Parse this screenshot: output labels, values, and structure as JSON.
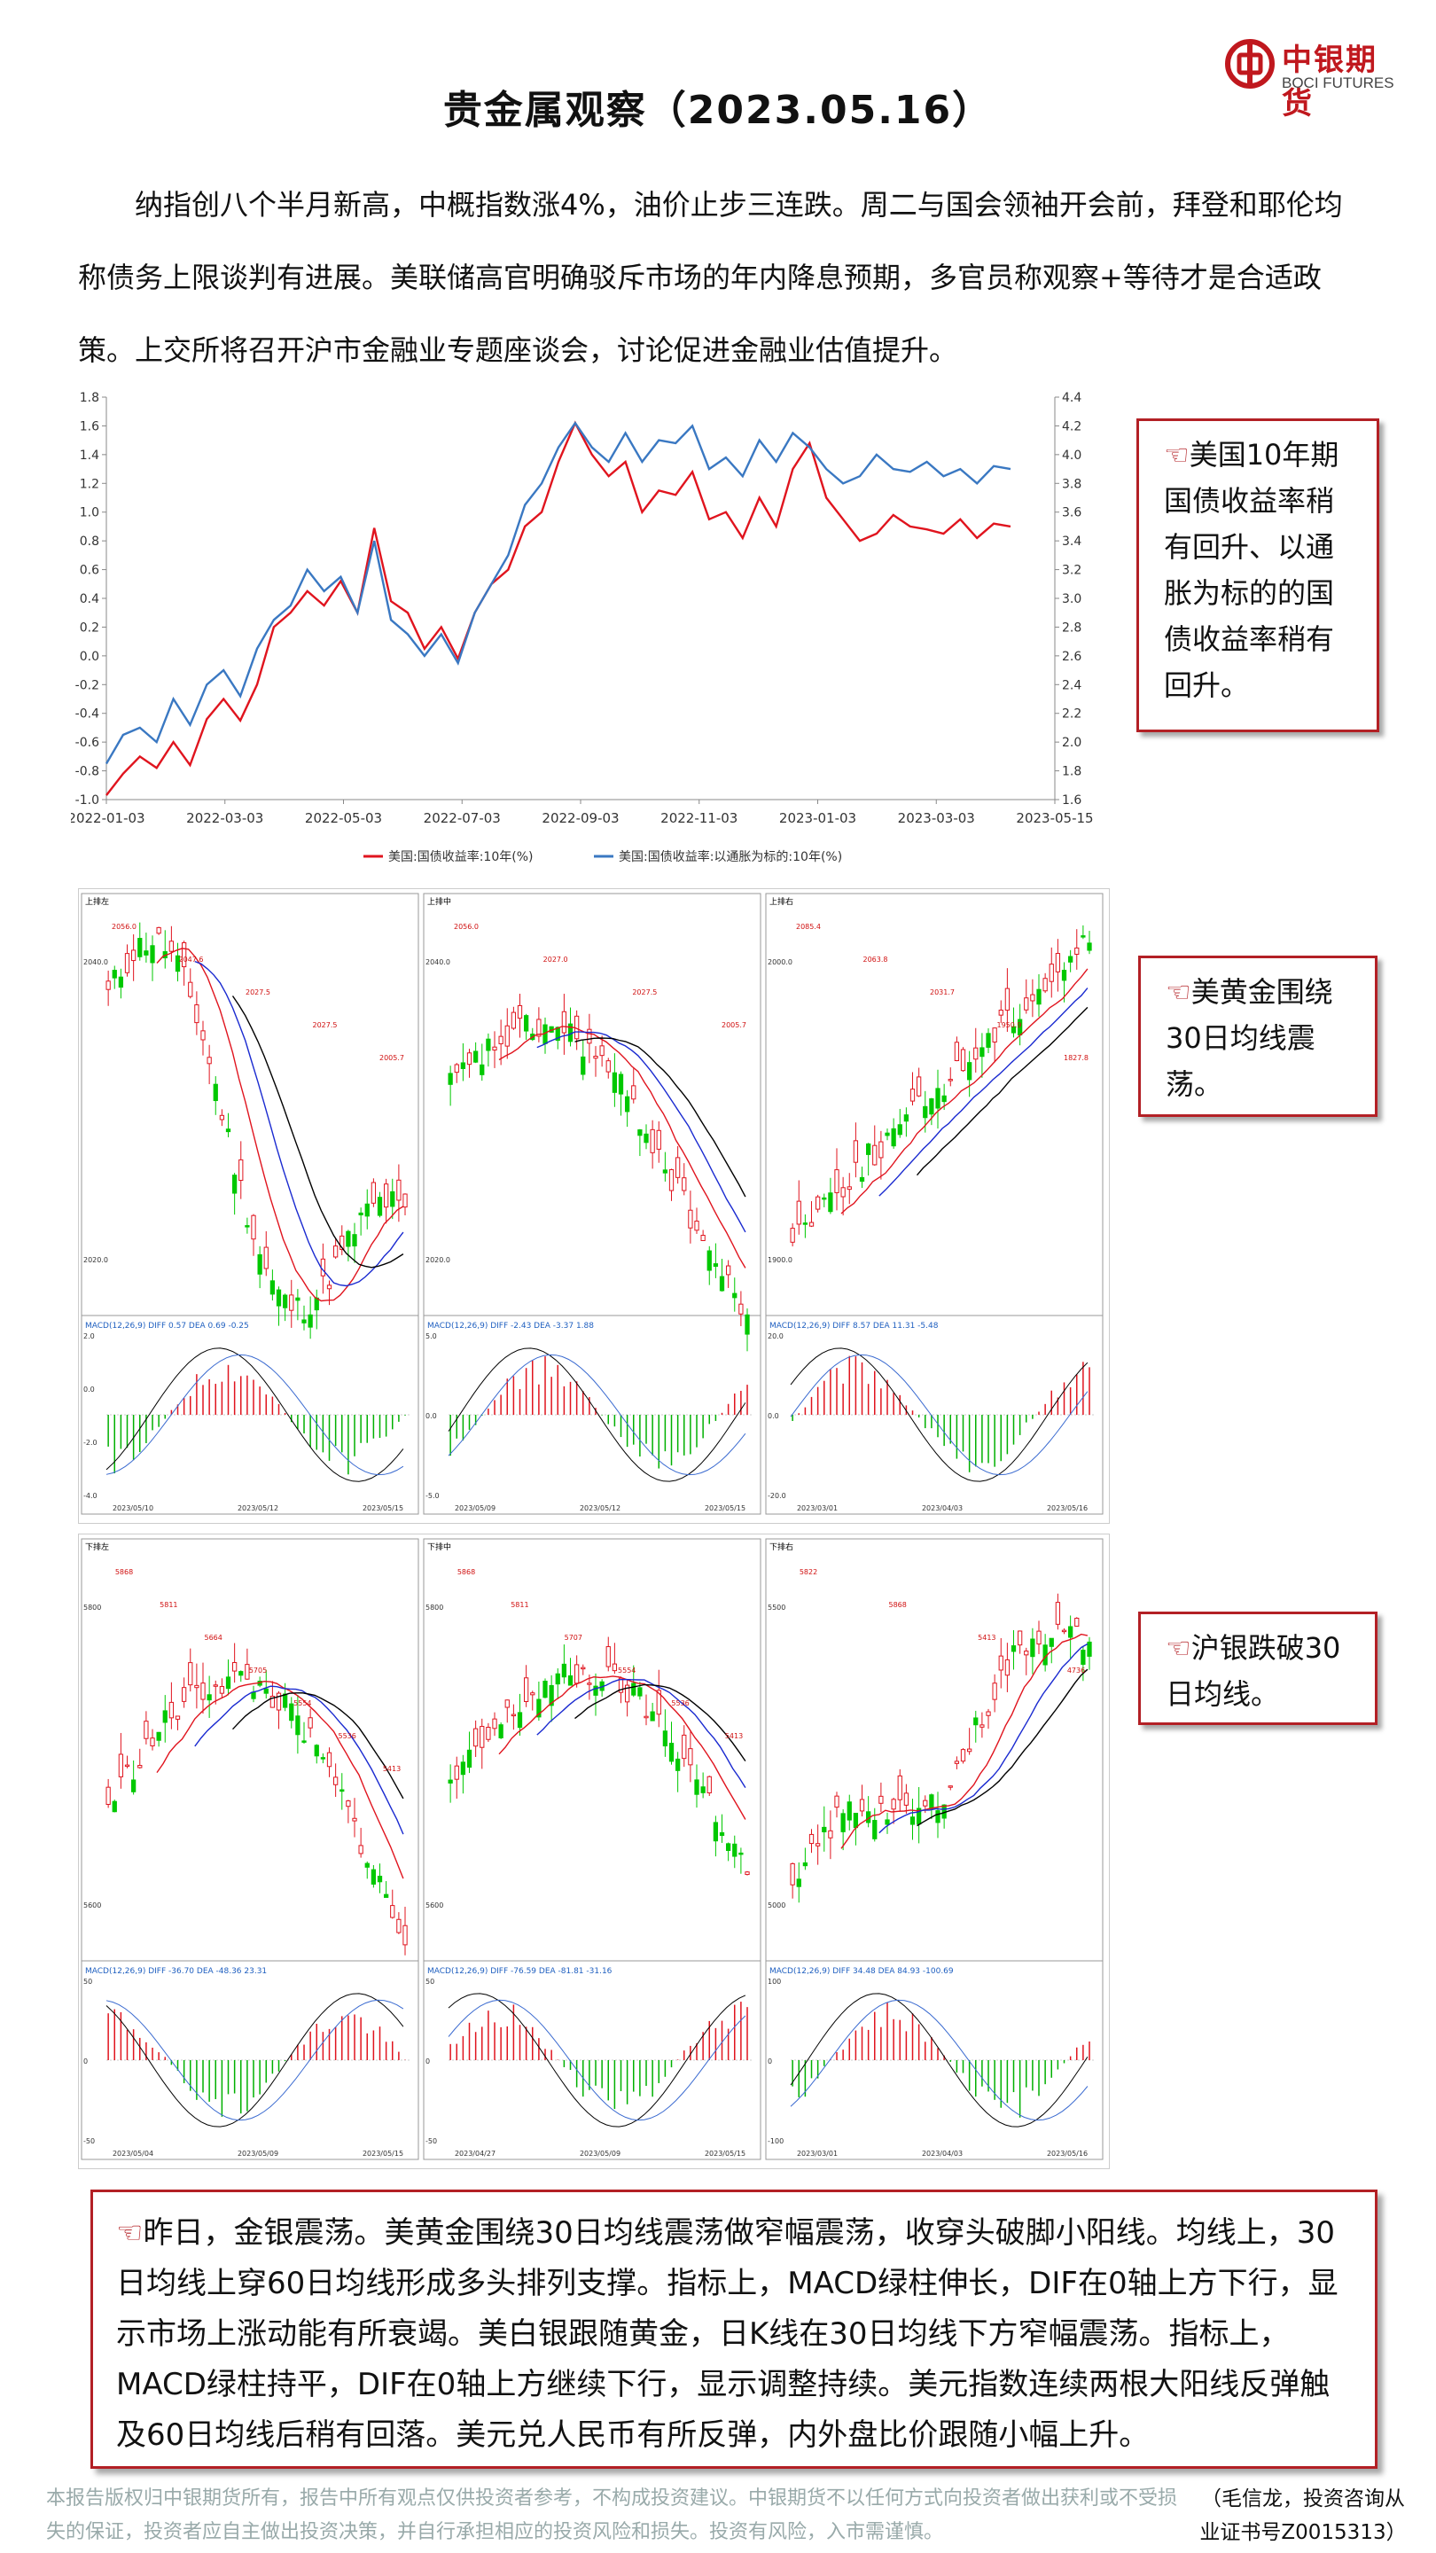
{
  "header": {
    "title": "贵金属观察（2023.05.16）",
    "logo_cn": "中银期货",
    "logo_en": "BOCI FUTURES",
    "brand_color": "#c0181e"
  },
  "intro": "纳指创八个半月新高，中概指数涨4%，油价止步三连跌。周二与国会领袖开会前，拜登和耶伦均称债务上限谈判有进展。美联储高官明确驳斥市场的年内降息预期，多官员称观察+等待才是合适政策。上交所将召开沪市金融业专题座谈会，讨论促进金融业估值提升。",
  "chart_data": [
    {
      "type": "line",
      "x_ticks": [
        "2022-01-03",
        "2022-03-03",
        "2022-05-03",
        "2022-07-03",
        "2022-09-03",
        "2022-11-03",
        "2023-01-03",
        "2023-03-03",
        "2023-05-15"
      ],
      "y_left_ticks": [
        "1.8",
        "1.6",
        "1.4",
        "1.2",
        "1.0",
        "0.8",
        "0.6",
        "0.4",
        "0.2",
        "0.0",
        "-0.2",
        "-0.4",
        "-0.6",
        "-0.8",
        "-1.0"
      ],
      "y_right_ticks": [
        "4.4",
        "4.2",
        "4.0",
        "3.8",
        "3.6",
        "3.4",
        "3.2",
        "3.0",
        "2.8",
        "2.6",
        "2.4",
        "2.2",
        "2.0",
        "1.8",
        "1.6"
      ],
      "ylim_left": [
        -1.0,
        1.8
      ],
      "ylim_right": [
        1.6,
        4.4
      ],
      "series": [
        {
          "name": "美国:国债收益率:10年(%)",
          "axis": "right",
          "color": "#e0141e",
          "values": [
            1.63,
            1.78,
            1.9,
            1.82,
            2.0,
            1.84,
            2.16,
            2.3,
            2.15,
            2.4,
            2.8,
            2.9,
            3.05,
            2.95,
            3.12,
            2.9,
            3.49,
            2.98,
            2.9,
            2.65,
            2.8,
            2.58,
            2.9,
            3.1,
            3.2,
            3.5,
            3.6,
            3.95,
            4.22,
            4.0,
            3.85,
            3.95,
            3.6,
            3.75,
            3.72,
            3.88,
            3.55,
            3.6,
            3.42,
            3.7,
            3.5,
            3.9,
            4.08,
            3.7,
            3.55,
            3.4,
            3.45,
            3.58,
            3.5,
            3.48,
            3.45,
            3.55,
            3.42,
            3.52,
            3.5
          ]
        },
        {
          "name": "美国:国债收益率:以通胀为标的:10年(%)",
          "axis": "left",
          "color": "#3a78c2",
          "values": [
            -0.75,
            -0.55,
            -0.5,
            -0.6,
            -0.3,
            -0.48,
            -0.2,
            -0.1,
            -0.28,
            0.05,
            0.25,
            0.35,
            0.6,
            0.45,
            0.55,
            0.3,
            0.8,
            0.25,
            0.15,
            0.0,
            0.15,
            -0.05,
            0.3,
            0.5,
            0.7,
            1.05,
            1.2,
            1.45,
            1.62,
            1.45,
            1.35,
            1.55,
            1.35,
            1.5,
            1.48,
            1.6,
            1.3,
            1.38,
            1.25,
            1.5,
            1.35,
            1.55,
            1.45,
            1.3,
            1.2,
            1.25,
            1.4,
            1.3,
            1.28,
            1.35,
            1.25,
            1.3,
            1.2,
            1.32,
            1.3
          ]
        }
      ]
    },
    {
      "type": "candlestick",
      "panel": "上排左",
      "price_labels": [
        "2056.0",
        "2047.6",
        "2027.5",
        "2027.5",
        "2005.7"
      ],
      "y_ticks": [
        "2040.0",
        "2020.0"
      ],
      "macd_ticks": [
        "2.0",
        "0.0",
        "-2.0",
        "-4.0"
      ],
      "x_ticks": [
        "2023/05/10",
        "2023/05/12",
        "2023/05/15"
      ],
      "header_text": "DIFF 0.57  DEA 0.69  -0.25"
    },
    {
      "type": "candlestick",
      "panel": "上排中",
      "price_labels": [
        "2056.0",
        "2027.0",
        "2027.5",
        "2005.7"
      ],
      "y_ticks": [
        "2040.0",
        "2020.0"
      ],
      "macd_ticks": [
        "5.0",
        "0.0",
        "-5.0"
      ],
      "x_ticks": [
        "2023/05/09",
        "2023/05/12",
        "2023/05/15"
      ],
      "header_text": "DIFF -2.43  DEA -3.37  1.88"
    },
    {
      "type": "candlestick",
      "panel": "上排右",
      "price_labels": [
        "2085.4",
        "2063.8",
        "2031.7",
        "1950.9",
        "1827.8"
      ],
      "y_ticks": [
        "2000.0",
        "1900.0"
      ],
      "macd_ticks": [
        "20.0",
        "0.0",
        "-20.0"
      ],
      "x_ticks": [
        "2023/03/01",
        "2023/04/03",
        "2023/05/16"
      ],
      "header_text": "DIFF 8.57  DEA 11.31  -5.48"
    },
    {
      "type": "candlestick",
      "panel": "下排左",
      "price_labels": [
        "5868",
        "5811",
        "5664",
        "5705",
        "5554",
        "5536",
        "5413"
      ],
      "y_ticks": [
        "5800",
        "5600"
      ],
      "macd_ticks": [
        "50",
        "0",
        "-50"
      ],
      "x_ticks": [
        "2023/05/04",
        "2023/05/09",
        "2023/05/15"
      ],
      "header_text": "DIFF -36.70  DEA -48.36  23.31"
    },
    {
      "type": "candlestick",
      "panel": "下排中",
      "price_labels": [
        "5868",
        "5811",
        "5707",
        "5554",
        "5536",
        "5413"
      ],
      "y_ticks": [
        "5800",
        "5600"
      ],
      "macd_ticks": [
        "50",
        "0",
        "-50"
      ],
      "x_ticks": [
        "2023/04/27",
        "2023/05/09",
        "2023/05/15"
      ],
      "header_text": "DIFF -76.59  DEA -81.81  -31.16"
    },
    {
      "type": "candlestick",
      "panel": "下排右",
      "price_labels": [
        "5822",
        "5868",
        "5413",
        "4736"
      ],
      "y_ticks": [
        "5500",
        "5000"
      ],
      "macd_ticks": [
        "100",
        "0",
        "-100"
      ],
      "x_ticks": [
        "2023/03/01",
        "2023/04/03",
        "2023/05/16"
      ],
      "header_text": "DIFF 34.48  DEA 84.93  -100.69"
    }
  ],
  "callouts": {
    "c1": "美国10年期国债收益率稍有回升、以通胀为标的的国债收益率稍有回升。",
    "c2": "美黄金围绕30日均线震荡。",
    "c3": "沪银跌破30日均线。",
    "arrow": "☜"
  },
  "summary": "昨日，金银震荡。美黄金围绕30日均线震荡做窄幅震荡，收穿头破脚小阳线。均线上，30日均线上穿60日均线形成多头排列支撑。指标上，MACD绿柱伸长，DIF在0轴上方下行，显示市场上涨动能有所衰竭。美白银跟随黄金，日K线在30日均线下方窄幅震荡。指标上，MACD绿柱持平，DIF在0轴上方继续下行，显示调整持续。美元指数连续两根大阳线反弹触及60日均线后稍有回落。美元兑人民币有所反弹，内外盘比价跟随小幅上升。",
  "footer": {
    "disclaimer": "本报告版权归中银期货所有，报告中所有观点仅供投资者参考，不构成投资建议。中银期货不以任何方式向投资者做出获利或不受损失的保证，投资者应自主做出投资决策，并自行承担相应的投资风险和损失。投资有风险，入市需谨慎。",
    "author": "（毛信龙，投资咨询从业证书号Z0015313）"
  }
}
